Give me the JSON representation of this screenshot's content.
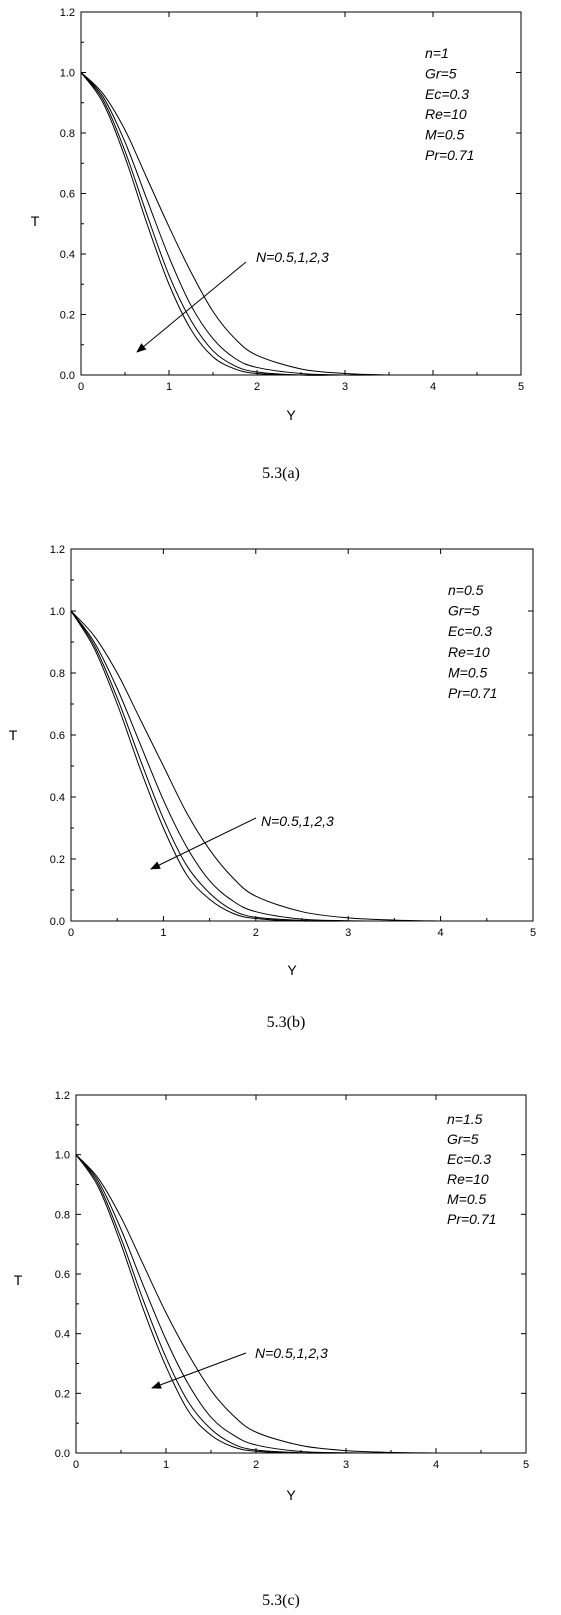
{
  "chart_data": [
    {
      "type": "line",
      "title": "",
      "xlabel": "Y",
      "ylabel": "T",
      "xlim": [
        0,
        5
      ],
      "ylim": [
        0,
        1.2
      ],
      "xticks": [
        "0",
        "1",
        "2",
        "3",
        "4",
        "5"
      ],
      "yticks": [
        "0.0",
        "0.2",
        "0.4",
        "0.6",
        "0.8",
        "1.0",
        "1.2"
      ],
      "grid": false,
      "params": [
        "n=1",
        "Gr=5",
        "Ec=0.3",
        "Re=10",
        "M=0.5",
        "Pr=0.71"
      ],
      "annotation": "N=0.5,1,2,3",
      "caption": "5.3(a)",
      "series": [
        {
          "x": [
            0,
            0.25,
            0.5,
            0.75,
            1.0,
            1.25,
            1.5,
            1.75,
            2.0,
            2.5,
            3.0,
            3.5
          ],
          "values": [
            1.0,
            0.9,
            0.72,
            0.5,
            0.3,
            0.15,
            0.06,
            0.02,
            0.005,
            0,
            0,
            0
          ]
        },
        {
          "x": [
            0,
            0.25,
            0.5,
            0.75,
            1.0,
            1.25,
            1.5,
            1.75,
            2.0,
            2.5,
            3.0,
            3.5
          ],
          "values": [
            1.0,
            0.91,
            0.74,
            0.53,
            0.33,
            0.18,
            0.08,
            0.03,
            0.01,
            0,
            0,
            0
          ]
        },
        {
          "x": [
            0,
            0.25,
            0.5,
            0.75,
            1.0,
            1.25,
            1.5,
            1.75,
            2.0,
            2.5,
            3.0,
            3.5
          ],
          "values": [
            1.0,
            0.92,
            0.77,
            0.58,
            0.39,
            0.23,
            0.12,
            0.055,
            0.025,
            0.005,
            0,
            0
          ]
        },
        {
          "x": [
            0,
            0.25,
            0.5,
            0.75,
            1.0,
            1.25,
            1.5,
            1.75,
            2.0,
            2.5,
            3.0,
            3.5
          ],
          "values": [
            1.0,
            0.93,
            0.81,
            0.65,
            0.49,
            0.34,
            0.21,
            0.12,
            0.065,
            0.02,
            0.005,
            0
          ]
        }
      ]
    },
    {
      "type": "line",
      "title": "",
      "xlabel": "Y",
      "ylabel": "T",
      "xlim": [
        0,
        5
      ],
      "ylim": [
        0,
        1.2
      ],
      "xticks": [
        "0",
        "1",
        "2",
        "3",
        "4",
        "5"
      ],
      "yticks": [
        "0.0",
        "0.2",
        "0.4",
        "0.6",
        "0.8",
        "1.0",
        "1.2"
      ],
      "grid": false,
      "params": [
        "n=0.5",
        "Gr=5",
        "Ec=0.3",
        "Re=10",
        "M=0.5",
        "Pr=0.71"
      ],
      "annotation": "N=0.5,1,2,3",
      "caption": "5.3(b)",
      "series": [
        {
          "x": [
            0,
            0.25,
            0.5,
            0.75,
            1.0,
            1.25,
            1.5,
            1.75,
            2.0,
            2.5,
            3.0,
            3.5,
            4.0
          ],
          "values": [
            1.0,
            0.88,
            0.7,
            0.49,
            0.3,
            0.15,
            0.07,
            0.025,
            0.008,
            0,
            0,
            0,
            0
          ]
        },
        {
          "x": [
            0,
            0.25,
            0.5,
            0.75,
            1.0,
            1.25,
            1.5,
            1.75,
            2.0,
            2.5,
            3.0,
            3.5,
            4.0
          ],
          "values": [
            1.0,
            0.89,
            0.72,
            0.52,
            0.33,
            0.18,
            0.09,
            0.035,
            0.012,
            0.002,
            0,
            0,
            0
          ]
        },
        {
          "x": [
            0,
            0.25,
            0.5,
            0.75,
            1.0,
            1.25,
            1.5,
            1.75,
            2.0,
            2.5,
            3.0,
            3.5,
            4.0
          ],
          "values": [
            1.0,
            0.9,
            0.75,
            0.57,
            0.39,
            0.24,
            0.13,
            0.065,
            0.03,
            0.006,
            0.001,
            0,
            0
          ]
        },
        {
          "x": [
            0,
            0.25,
            0.5,
            0.75,
            1.0,
            1.25,
            1.5,
            1.75,
            2.0,
            2.5,
            3.0,
            3.5,
            4.0
          ],
          "values": [
            1.0,
            0.92,
            0.8,
            0.65,
            0.5,
            0.35,
            0.23,
            0.14,
            0.08,
            0.03,
            0.01,
            0.003,
            0
          ]
        }
      ]
    },
    {
      "type": "line",
      "title": "",
      "xlabel": "Y",
      "ylabel": "T",
      "xlim": [
        0,
        5
      ],
      "ylim": [
        0,
        1.2
      ],
      "xticks": [
        "0",
        "1",
        "2",
        "3",
        "4",
        "5"
      ],
      "yticks": [
        "0.0",
        "0.2",
        "0.4",
        "0.6",
        "0.8",
        "1.0",
        "1.2"
      ],
      "grid": false,
      "params": [
        "n=1.5",
        "Gr=5",
        "Ec=0.3",
        "Re=10",
        "M=0.5",
        "Pr=0.71"
      ],
      "annotation": "N=0.5,1,2,3",
      "caption": "5.3(c)",
      "series": [
        {
          "x": [
            0,
            0.25,
            0.5,
            0.75,
            1.0,
            1.25,
            1.5,
            1.75,
            2.0,
            2.5,
            3.0,
            3.5,
            4.0
          ],
          "values": [
            1.0,
            0.89,
            0.7,
            0.48,
            0.29,
            0.14,
            0.06,
            0.02,
            0.006,
            0,
            0,
            0,
            0
          ]
        },
        {
          "x": [
            0,
            0.25,
            0.5,
            0.75,
            1.0,
            1.25,
            1.5,
            1.75,
            2.0,
            2.5,
            3.0,
            3.5,
            4.0
          ],
          "values": [
            1.0,
            0.9,
            0.72,
            0.51,
            0.32,
            0.17,
            0.08,
            0.03,
            0.01,
            0.001,
            0,
            0,
            0
          ]
        },
        {
          "x": [
            0,
            0.25,
            0.5,
            0.75,
            1.0,
            1.25,
            1.5,
            1.75,
            2.0,
            2.5,
            3.0,
            3.5,
            4.0
          ],
          "values": [
            1.0,
            0.91,
            0.75,
            0.56,
            0.38,
            0.23,
            0.12,
            0.06,
            0.027,
            0.005,
            0.001,
            0,
            0
          ]
        },
        {
          "x": [
            0,
            0.25,
            0.5,
            0.75,
            1.0,
            1.25,
            1.5,
            1.75,
            2.0,
            2.5,
            3.0,
            3.5,
            4.0
          ],
          "values": [
            1.0,
            0.92,
            0.79,
            0.63,
            0.47,
            0.33,
            0.21,
            0.125,
            0.07,
            0.025,
            0.008,
            0.002,
            0
          ]
        }
      ]
    }
  ]
}
